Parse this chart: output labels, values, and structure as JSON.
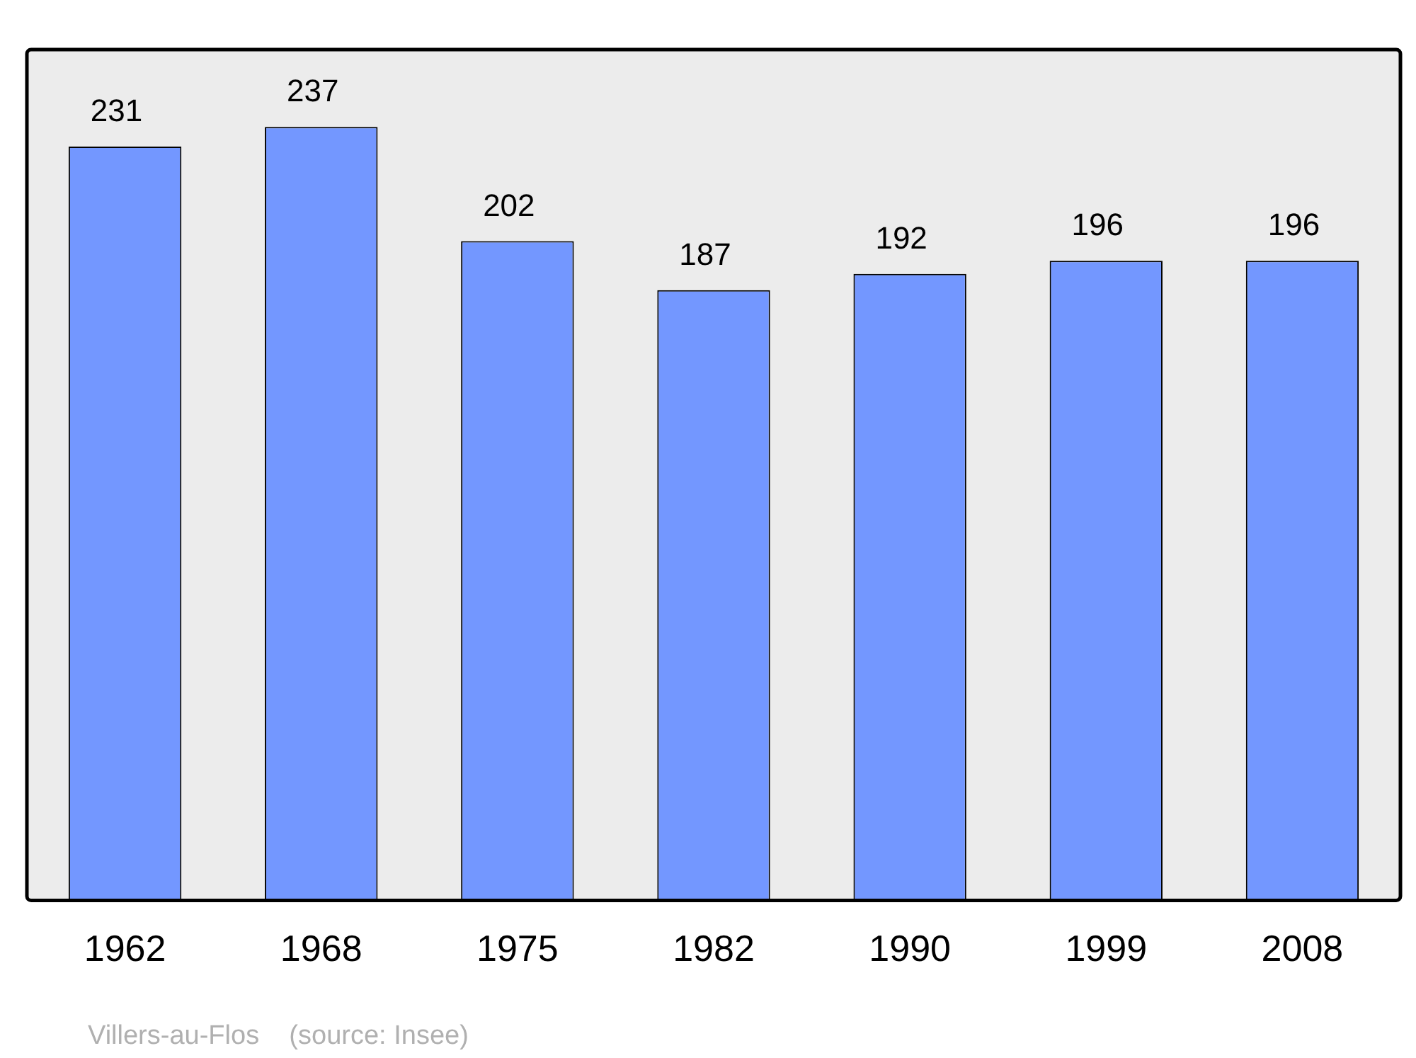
{
  "chart_data": {
    "type": "bar",
    "categories": [
      "1962",
      "1968",
      "1975",
      "1982",
      "1990",
      "1999",
      "2008"
    ],
    "values": [
      231,
      237,
      202,
      187,
      192,
      196,
      196
    ],
    "color": "#7397ff",
    "relative": false,
    "data_labels": true,
    "grid": false,
    "legend": false,
    "annotations": [
      "Villers-au-Flos    (source: Insee)"
    ]
  }
}
